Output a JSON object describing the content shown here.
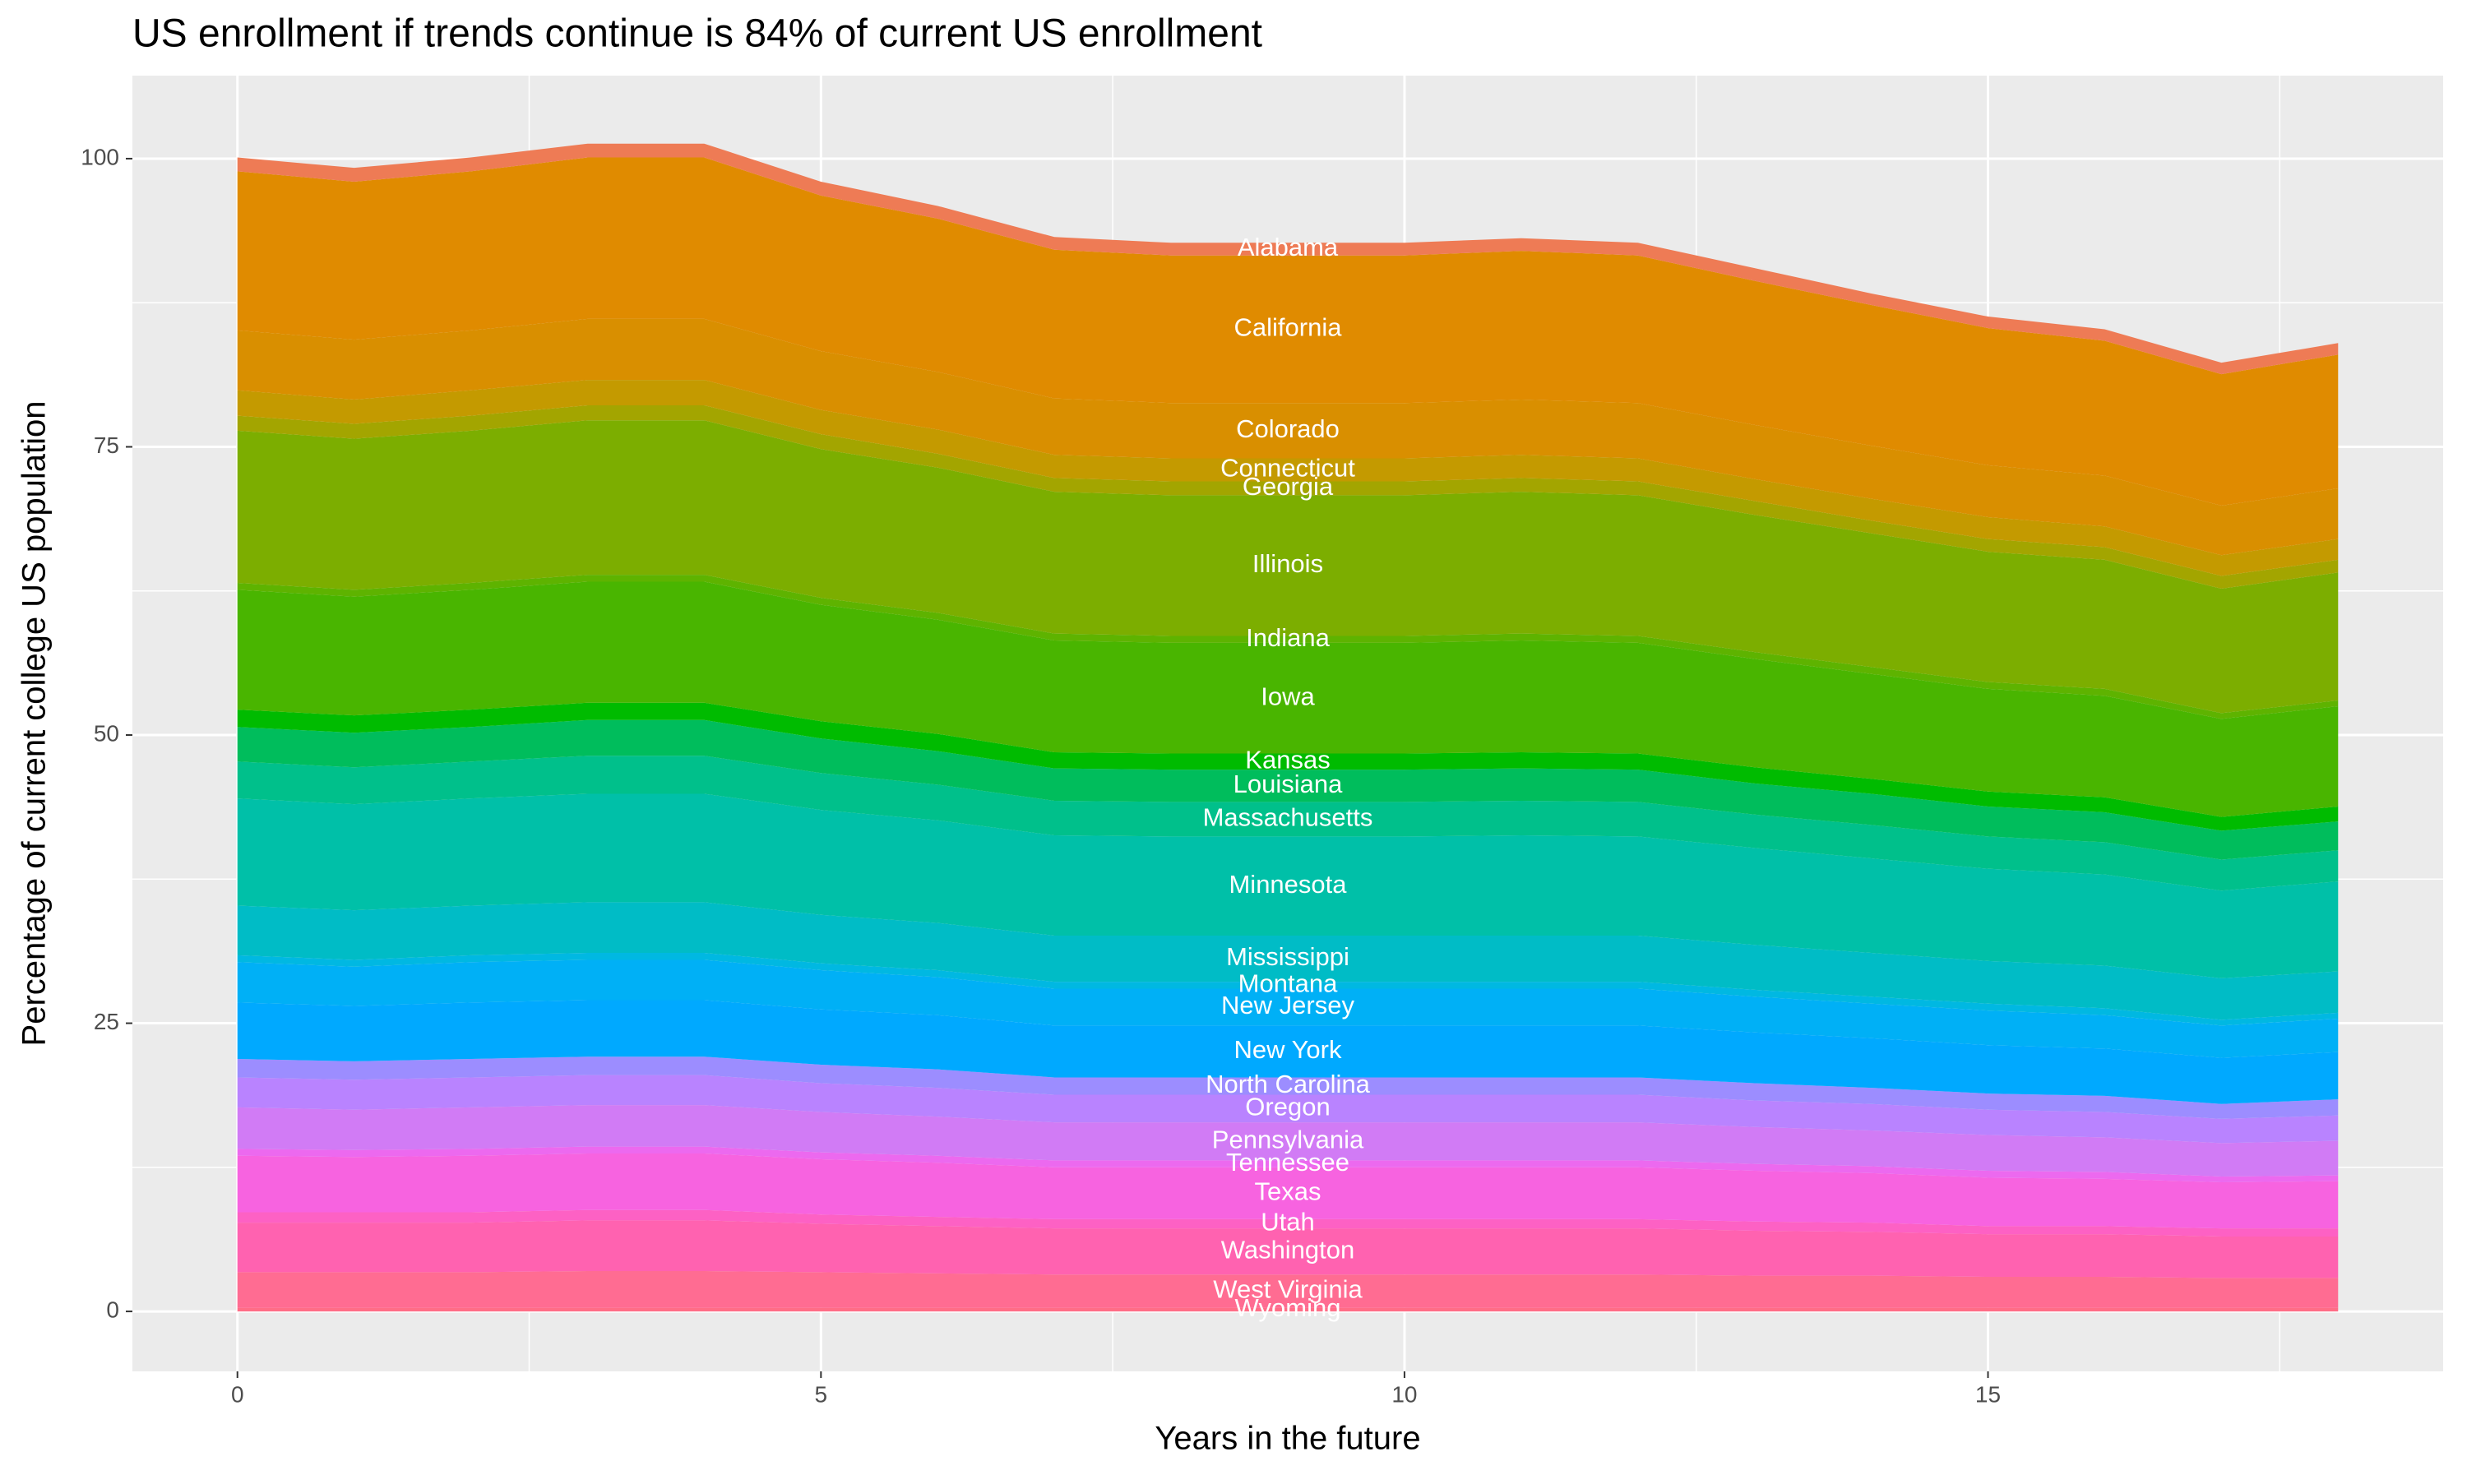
{
  "chart_data": {
    "type": "stacked-area",
    "title": "US enrollment if trends continue is 84% of current US enrollment",
    "x_label": "Years in the future",
    "y_label": "Percentage of current college US population",
    "x": [
      0,
      1,
      2,
      3,
      4,
      5,
      6,
      7,
      8,
      9,
      10,
      11,
      12,
      13,
      14,
      15,
      16,
      17,
      18
    ],
    "xlim": [
      -0.9,
      18.9
    ],
    "xticks": [
      0,
      5,
      10,
      15
    ],
    "ylim": [
      -5.2,
      107.2
    ],
    "yticks": [
      0,
      25,
      50,
      75,
      100
    ],
    "grid": true,
    "label_x": 9,
    "series": [
      {
        "name": "Alabama",
        "color": "#ee7b55",
        "values": [
          1.2,
          1.2,
          1.2,
          1.2,
          1.2,
          1.2,
          1.1,
          1.1,
          1.1,
          1.1,
          1.1,
          1.1,
          1.1,
          1.1,
          1.0,
          1.0,
          1.0,
          1.0,
          1.0
        ]
      },
      {
        "name": "California",
        "color": "#e08b00",
        "values": [
          13.8,
          13.7,
          13.8,
          14.0,
          14.0,
          13.5,
          13.3,
          12.9,
          12.8,
          12.8,
          12.8,
          12.9,
          12.8,
          12.5,
          12.2,
          11.9,
          11.7,
          11.4,
          11.6
        ]
      },
      {
        "name": "Colorado",
        "color": "#d98f00",
        "values": [
          5.2,
          5.2,
          5.2,
          5.3,
          5.3,
          5.1,
          5.0,
          4.9,
          4.8,
          4.8,
          4.8,
          4.8,
          4.8,
          4.7,
          4.6,
          4.5,
          4.4,
          4.3,
          4.4
        ]
      },
      {
        "name": "Connecticut",
        "color": "#c49a00",
        "values": [
          2.2,
          2.1,
          2.2,
          2.2,
          2.2,
          2.1,
          2.1,
          2.0,
          2.0,
          2.0,
          2.0,
          2.0,
          2.0,
          1.9,
          1.9,
          1.9,
          1.8,
          1.8,
          1.8
        ]
      },
      {
        "name": "Georgia",
        "color": "#a3a500",
        "values": [
          1.3,
          1.3,
          1.3,
          1.3,
          1.3,
          1.3,
          1.2,
          1.2,
          1.2,
          1.2,
          1.2,
          1.2,
          1.2,
          1.2,
          1.1,
          1.1,
          1.1,
          1.1,
          1.1
        ]
      },
      {
        "name": "Illinois",
        "color": "#7cae00",
        "values": [
          13.2,
          13.1,
          13.2,
          13.4,
          13.4,
          12.9,
          12.6,
          12.3,
          12.2,
          12.2,
          12.2,
          12.3,
          12.2,
          11.9,
          11.6,
          11.3,
          11.2,
          10.8,
          11.1
        ]
      },
      {
        "name": "Indiana",
        "color": "#5eb300",
        "values": [
          0.6,
          0.6,
          0.6,
          0.6,
          0.6,
          0.6,
          0.6,
          0.6,
          0.6,
          0.6,
          0.6,
          0.6,
          0.6,
          0.6,
          0.6,
          0.6,
          0.6,
          0.5,
          0.5
        ]
      },
      {
        "name": "Iowa",
        "color": "#49b500",
        "values": [
          10.4,
          10.3,
          10.4,
          10.5,
          10.5,
          10.1,
          9.9,
          9.7,
          9.6,
          9.6,
          9.6,
          9.7,
          9.6,
          9.4,
          9.1,
          8.9,
          8.8,
          8.5,
          8.7
        ]
      },
      {
        "name": "Kansas",
        "color": "#00bb00",
        "values": [
          1.5,
          1.5,
          1.5,
          1.5,
          1.5,
          1.5,
          1.5,
          1.4,
          1.4,
          1.4,
          1.4,
          1.4,
          1.4,
          1.4,
          1.3,
          1.3,
          1.3,
          1.2,
          1.3
        ]
      },
      {
        "name": "Louisiana",
        "color": "#00bd5c",
        "values": [
          3.0,
          3.0,
          3.0,
          3.1,
          3.1,
          3.0,
          2.9,
          2.8,
          2.8,
          2.8,
          2.8,
          2.8,
          2.8,
          2.7,
          2.7,
          2.6,
          2.6,
          2.5,
          2.5
        ]
      },
      {
        "name": "Massachusetts",
        "color": "#00c08b",
        "values": [
          3.2,
          3.2,
          3.2,
          3.3,
          3.3,
          3.2,
          3.1,
          3.0,
          3.0,
          3.0,
          3.0,
          3.0,
          3.0,
          2.9,
          2.9,
          2.8,
          2.8,
          2.7,
          2.7
        ]
      },
      {
        "name": "Minnesota",
        "color": "#00c0a8",
        "values": [
          9.3,
          9.2,
          9.3,
          9.4,
          9.4,
          9.1,
          8.9,
          8.7,
          8.6,
          8.6,
          8.6,
          8.7,
          8.6,
          8.4,
          8.2,
          8.0,
          7.9,
          7.6,
          7.8
        ]
      },
      {
        "name": "Mississippi",
        "color": "#00bcc6",
        "values": [
          4.3,
          4.3,
          4.3,
          4.4,
          4.4,
          4.2,
          4.1,
          4.0,
          4.0,
          4.0,
          4.0,
          4.0,
          4.0,
          3.9,
          3.8,
          3.7,
          3.7,
          3.6,
          3.6
        ]
      },
      {
        "name": "Montana",
        "color": "#00b8e2",
        "values": [
          0.6,
          0.6,
          0.6,
          0.6,
          0.6,
          0.6,
          0.6,
          0.6,
          0.6,
          0.6,
          0.6,
          0.6,
          0.6,
          0.6,
          0.6,
          0.6,
          0.6,
          0.5,
          0.5
        ]
      },
      {
        "name": "New Jersey",
        "color": "#00b0f6",
        "values": [
          3.5,
          3.4,
          3.5,
          3.5,
          3.5,
          3.4,
          3.3,
          3.2,
          3.2,
          3.2,
          3.2,
          3.2,
          3.2,
          3.1,
          3.0,
          3.0,
          2.9,
          2.8,
          2.9
        ]
      },
      {
        "name": "New York",
        "color": "#00a9ff",
        "values": [
          4.9,
          4.8,
          4.9,
          4.9,
          4.9,
          4.8,
          4.7,
          4.5,
          4.5,
          4.5,
          4.5,
          4.5,
          4.5,
          4.4,
          4.3,
          4.2,
          4.1,
          4.0,
          4.1
        ]
      },
      {
        "name": "North Carolina",
        "color": "#9c8dff",
        "values": [
          1.6,
          1.6,
          1.6,
          1.6,
          1.6,
          1.6,
          1.6,
          1.5,
          1.5,
          1.5,
          1.5,
          1.5,
          1.5,
          1.5,
          1.4,
          1.4,
          1.4,
          1.3,
          1.4
        ]
      },
      {
        "name": "Oregon",
        "color": "#b983ff",
        "values": [
          2.6,
          2.6,
          2.6,
          2.6,
          2.6,
          2.5,
          2.5,
          2.4,
          2.4,
          2.4,
          2.4,
          2.4,
          2.4,
          2.3,
          2.3,
          2.2,
          2.2,
          2.1,
          2.2
        ]
      },
      {
        "name": "Pennsylvania",
        "color": "#d17bf5",
        "values": [
          3.6,
          3.5,
          3.6,
          3.6,
          3.6,
          3.5,
          3.4,
          3.3,
          3.3,
          3.3,
          3.3,
          3.3,
          3.3,
          3.2,
          3.1,
          3.1,
          3.0,
          2.9,
          3.0
        ]
      },
      {
        "name": "Tennessee",
        "color": "#ec69ef",
        "values": [
          0.6,
          0.6,
          0.6,
          0.6,
          0.6,
          0.6,
          0.6,
          0.6,
          0.6,
          0.6,
          0.6,
          0.6,
          0.6,
          0.6,
          0.6,
          0.6,
          0.6,
          0.5,
          0.5
        ]
      },
      {
        "name": "Texas",
        "color": "#f763e0",
        "values": [
          4.9,
          4.8,
          4.9,
          4.9,
          4.9,
          4.8,
          4.7,
          4.5,
          4.5,
          4.5,
          4.5,
          4.5,
          4.5,
          4.4,
          4.3,
          4.2,
          4.1,
          4.0,
          4.1
        ]
      },
      {
        "name": "Utah",
        "color": "#fd61c4",
        "values": [
          0.9,
          0.9,
          0.9,
          0.9,
          0.9,
          0.8,
          0.8,
          0.8,
          0.8,
          0.8,
          0.8,
          0.8,
          0.8,
          0.8,
          0.8,
          0.7,
          0.7,
          0.7,
          0.7
        ]
      },
      {
        "name": "Washington",
        "color": "#ff62b0",
        "values": [
          4.3,
          4.3,
          4.3,
          4.4,
          4.4,
          4.2,
          4.1,
          4.0,
          4.0,
          4.0,
          4.0,
          4.0,
          4.0,
          3.9,
          3.8,
          3.7,
          3.7,
          3.6,
          3.6
        ]
      },
      {
        "name": "West Virginia",
        "color": "#ff6c92",
        "values": [
          3.1,
          3.1,
          3.1,
          3.2,
          3.2,
          3.1,
          3.0,
          2.9,
          2.9,
          2.9,
          2.9,
          2.9,
          2.9,
          2.8,
          2.8,
          2.7,
          2.7,
          2.6,
          2.6
        ]
      },
      {
        "name": "Wyoming",
        "color": "#ff6d86",
        "values": [
          0.3,
          0.3,
          0.3,
          0.3,
          0.3,
          0.3,
          0.3,
          0.3,
          0.3,
          0.3,
          0.3,
          0.3,
          0.3,
          0.3,
          0.3,
          0.3,
          0.3,
          0.3,
          0.3
        ]
      }
    ]
  }
}
